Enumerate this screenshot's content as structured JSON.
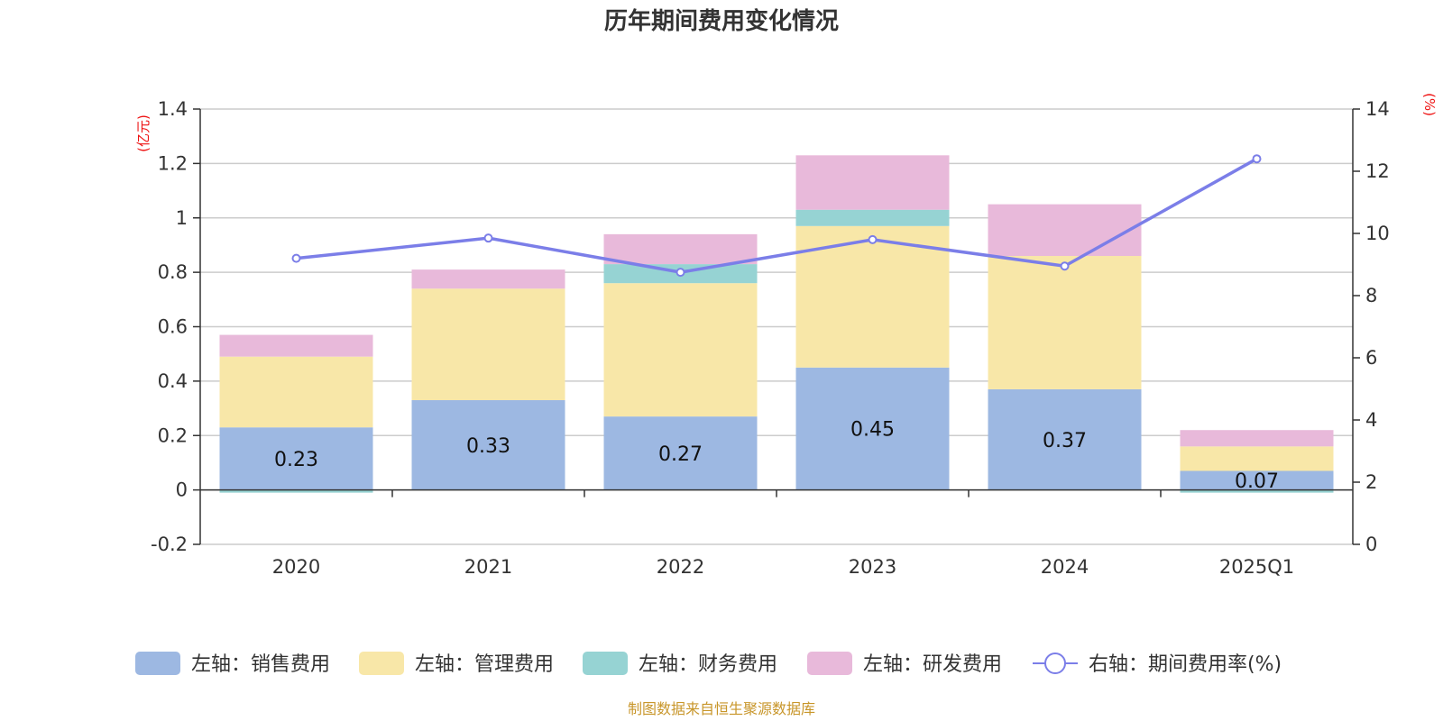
{
  "chart_data": {
    "type": "bar",
    "title": "历年期间费用变化情况",
    "categories": [
      "2020",
      "2021",
      "2022",
      "2023",
      "2024",
      "2025Q1"
    ],
    "left_axis": {
      "unit": "(亿元)",
      "ylim": [
        -0.2,
        1.4
      ],
      "ticks": [
        -0.2,
        0,
        0.2,
        0.4,
        0.6,
        0.8,
        1,
        1.2,
        1.4
      ]
    },
    "right_axis": {
      "unit": "(%)",
      "ylim": [
        0,
        14
      ],
      "ticks": [
        0,
        2,
        4,
        6,
        8,
        10,
        12,
        14
      ]
    },
    "series": [
      {
        "name": "左轴：销售费用",
        "axis": "left",
        "color": "#9db8e2",
        "values": [
          0.23,
          0.33,
          0.27,
          0.45,
          0.37,
          0.07
        ],
        "labels": [
          "0.23",
          "0.33",
          "0.27",
          "0.45",
          "0.37",
          "0.07"
        ]
      },
      {
        "name": "左轴：管理费用",
        "axis": "left",
        "color": "#f8e7a8",
        "values": [
          0.26,
          0.41,
          0.49,
          0.52,
          0.49,
          0.09
        ]
      },
      {
        "name": "左轴：财务费用",
        "axis": "left",
        "color": "#96d3d3",
        "values": [
          -0.01,
          0.0,
          0.07,
          0.06,
          0.0,
          -0.01
        ]
      },
      {
        "name": "左轴：研发费用",
        "axis": "left",
        "color": "#e8b9da",
        "values": [
          0.08,
          0.07,
          0.11,
          0.2,
          0.19,
          0.06
        ]
      },
      {
        "name": "右轴：期间费用率(%)",
        "axis": "right",
        "type": "line",
        "color": "#7b7ee8",
        "values": [
          9.2,
          9.85,
          8.75,
          9.8,
          8.95,
          12.4
        ]
      }
    ]
  },
  "source": "制图数据来自恒生聚源数据库"
}
